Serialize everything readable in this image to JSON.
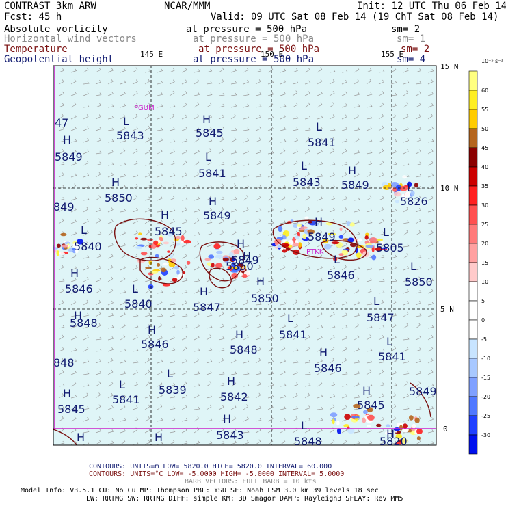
{
  "header": {
    "line1_left": "CONTRAST  3km ARW",
    "line1_center": "NCAR/MMM",
    "line1_right": "Init: 12 UTC Thu 06 Feb 14",
    "line2_left": "Fcst:   45 h",
    "line2_right": "Valid: 09 UTC Sat 08 Feb 14 (19 ChT Sat 08 Feb 14)",
    "fields": [
      {
        "name": "Absolute vorticity",
        "level": "at pressure =  500 hPa",
        "smooth": "sm= 2",
        "color": "#000000"
      },
      {
        "name": "Horizontal wind vectors",
        "level": "at pressure =  500 hPa",
        "smooth": "sm= 1",
        "color": "#8a8a8a"
      },
      {
        "name": "Temperature",
        "level": "at pressure =  500 hPa",
        "smooth": "sm= 2",
        "color": "#7a1010"
      },
      {
        "name": "Geopotential height",
        "level": "at pressure =  500 hPa",
        "smooth": "sm= 4",
        "color": "#101a70"
      }
    ]
  },
  "axes": {
    "top_labels": [
      "145 E",
      "150 E",
      "155 E"
    ],
    "right_labels": [
      "15 N",
      "10 N",
      "5 N",
      "0"
    ]
  },
  "colorbar": {
    "unit": "10⁻⁵ s⁻¹",
    "entries": [
      {
        "label": "60",
        "color": "#ffff80"
      },
      {
        "label": "55",
        "color": "#ffee22"
      },
      {
        "label": "50",
        "color": "#ffcc00"
      },
      {
        "label": "45",
        "color": "#b5651d"
      },
      {
        "label": "40",
        "color": "#8b0000"
      },
      {
        "label": "35",
        "color": "#cc0000"
      },
      {
        "label": "30",
        "color": "#ff2020"
      },
      {
        "label": "25",
        "color": "#ff5050"
      },
      {
        "label": "20",
        "color": "#ff7a7a"
      },
      {
        "label": "15",
        "color": "#ffa0a0"
      },
      {
        "label": "10",
        "color": "#ffcaca"
      },
      {
        "label": "5",
        "color": "#ffffff"
      },
      {
        "label": "0",
        "color": "#ffffff"
      },
      {
        "label": "-5",
        "color": "#ffffff"
      },
      {
        "label": "-10",
        "color": "#c8e4ff"
      },
      {
        "label": "-15",
        "color": "#a8c8ff"
      },
      {
        "label": "-20",
        "color": "#7fa0ff"
      },
      {
        "label": "-25",
        "color": "#5078ff"
      },
      {
        "label": "-30",
        "color": "#2040ff"
      },
      {
        "label": "",
        "color": "#0010ee"
      }
    ]
  },
  "map": {
    "ocean_color": "#dff5f7",
    "place_labels": [
      "PGUM",
      "PTKK"
    ],
    "height_labels": [
      {
        "type": "H",
        "value": "5849"
      },
      {
        "type": "H",
        "value": "5850"
      },
      {
        "type": "H",
        "value": "5846"
      },
      {
        "type": "H",
        "value": "5848"
      },
      {
        "type": "H",
        "value": "5845"
      },
      {
        "type": "H",
        "value": "5845"
      },
      {
        "type": "H",
        "value": "5849"
      },
      {
        "type": "H",
        "value": "5849"
      },
      {
        "type": "H",
        "value": "5850"
      },
      {
        "type": "H",
        "value": "5847"
      },
      {
        "type": "H",
        "value": "5846"
      },
      {
        "type": "H",
        "value": "5848"
      },
      {
        "type": "H",
        "value": "5842"
      },
      {
        "type": "H",
        "value": "5843"
      },
      {
        "type": "H",
        "value": "5846"
      },
      {
        "type": "H",
        "value": "5849"
      },
      {
        "type": "H",
        "value": "5845"
      },
      {
        "type": "L",
        "value": "5843"
      },
      {
        "type": "L",
        "value": "5841"
      },
      {
        "type": "L",
        "value": "5840"
      },
      {
        "type": "L",
        "value": "5841"
      },
      {
        "type": "L",
        "value": "5839"
      },
      {
        "type": "L",
        "value": "5841"
      },
      {
        "type": "L",
        "value": "5843"
      },
      {
        "type": "L",
        "value": "5846"
      },
      {
        "type": "L",
        "value": "5841"
      },
      {
        "type": "L",
        "value": "5850"
      },
      {
        "type": "L",
        "value": "5847"
      },
      {
        "type": "L",
        "value": "5841"
      },
      {
        "type": "L",
        "value": "5840"
      },
      {
        "type": "H",
        "value": "5845"
      },
      {
        "type": "H",
        "value": "5850"
      },
      {
        "type": "L",
        "value": "5826"
      },
      {
        "type": "L",
        "value": "5805"
      },
      {
        "type": "H",
        "value": "5849"
      },
      {
        "type": "L",
        "value": "5848"
      },
      {
        "type": "H",
        "value": "5820"
      }
    ],
    "edge_labels": [
      "47",
      "849",
      "848",
      "5849",
      "H",
      "H"
    ]
  },
  "footer": {
    "contours1": "CONTOURS:  UNITS=m  LOW=  5820.0        HIGH=  5820.0       INTERVAL=  60.000",
    "contours2": "CONTOURS:  UNITS=°C  LOW= -5.0000      HIGH= -5.0000       INTERVAL=   5.0000",
    "barbs": "BARB VECTORS:  FULL BARB = 10 kts",
    "model1": "Model Info: V3.5.1    CU: No Cu    MP: Thompson    PBL: YSU      SF: Noah LSM    3.0 km   39 levels   18 sec",
    "model2": "LW: RRTMG    SW: RRTMG   DIFF: simple KM: 3D Smagor DAMP: Rayleigh3   SFLAY: Rev MM5"
  }
}
